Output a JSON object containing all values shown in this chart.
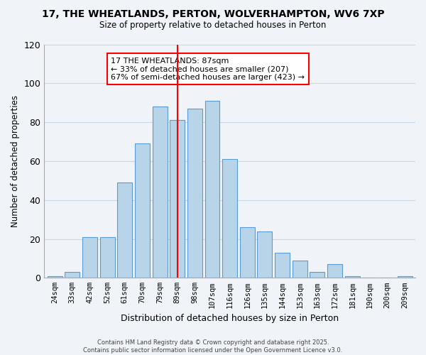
{
  "title": "17, THE WHEATLANDS, PERTON, WOLVERHAMPTON, WV6 7XP",
  "subtitle": "Size of property relative to detached houses in Perton",
  "xlabel": "Distribution of detached houses by size in Perton",
  "ylabel": "Number of detached properties",
  "categories": [
    "24sqm",
    "33sqm",
    "42sqm",
    "52sqm",
    "61sqm",
    "70sqm",
    "79sqm",
    "89sqm",
    "98sqm",
    "107sqm",
    "116sqm",
    "126sqm",
    "135sqm",
    "144sqm",
    "153sqm",
    "163sqm",
    "172sqm",
    "181sqm",
    "190sqm",
    "200sqm",
    "209sqm"
  ],
  "values": [
    1,
    3,
    21,
    21,
    49,
    69,
    88,
    81,
    87,
    91,
    61,
    26,
    24,
    13,
    9,
    3,
    7,
    1,
    0,
    0,
    1
  ],
  "bar_color": "#b8d4e8",
  "bar_edge_color": "#5b9bd5",
  "vline_x": 7,
  "vline_color": "red",
  "ylim": [
    0,
    120
  ],
  "yticks": [
    0,
    20,
    40,
    60,
    80,
    100,
    120
  ],
  "annotation_line1": "17 THE WHEATLANDS: 87sqm",
  "annotation_line2": "← 33% of detached houses are smaller (207)",
  "annotation_line3": "67% of semi-detached houses are larger (423) →",
  "footer_line1": "Contains HM Land Registry data © Crown copyright and database right 2025.",
  "footer_line2": "Contains public sector information licensed under the Open Government Licence v3.0.",
  "background_color": "#f0f4f8",
  "grid_color": "#c8d8e8"
}
